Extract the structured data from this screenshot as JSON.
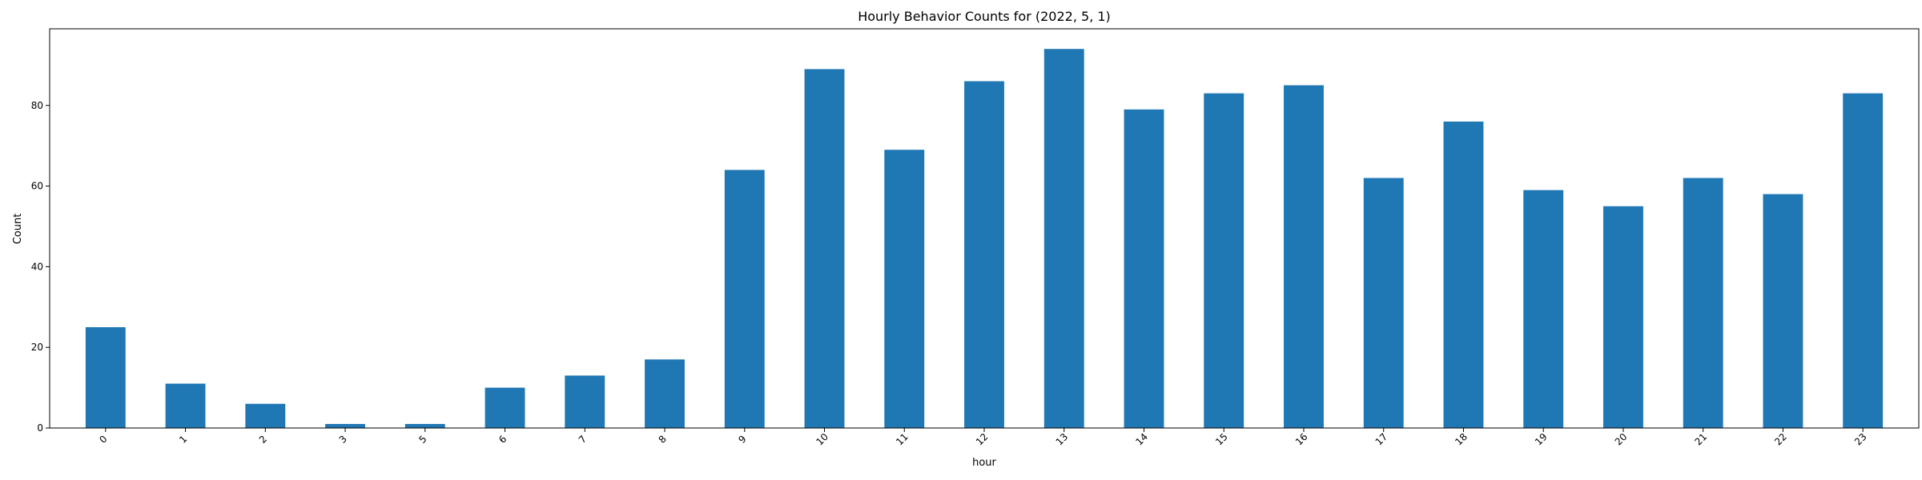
{
  "chart_data": {
    "type": "bar",
    "title": "Hourly Behavior Counts for (2022, 5, 1)",
    "xlabel": "hour",
    "ylabel": "Count",
    "categories": [
      "0",
      "1",
      "2",
      "3",
      "5",
      "6",
      "7",
      "8",
      "9",
      "10",
      "11",
      "12",
      "13",
      "14",
      "15",
      "16",
      "17",
      "18",
      "19",
      "20",
      "21",
      "22",
      "23"
    ],
    "values": [
      25,
      11,
      6,
      1,
      1,
      10,
      13,
      17,
      64,
      89,
      69,
      86,
      94,
      79,
      83,
      85,
      62,
      76,
      59,
      55,
      62,
      58,
      83
    ],
    "ylim": [
      0,
      99
    ],
    "yticks": [
      "0",
      "20",
      "40",
      "60",
      "80"
    ],
    "bar_color": "#1f77b4",
    "grid": false,
    "legend": "none"
  }
}
